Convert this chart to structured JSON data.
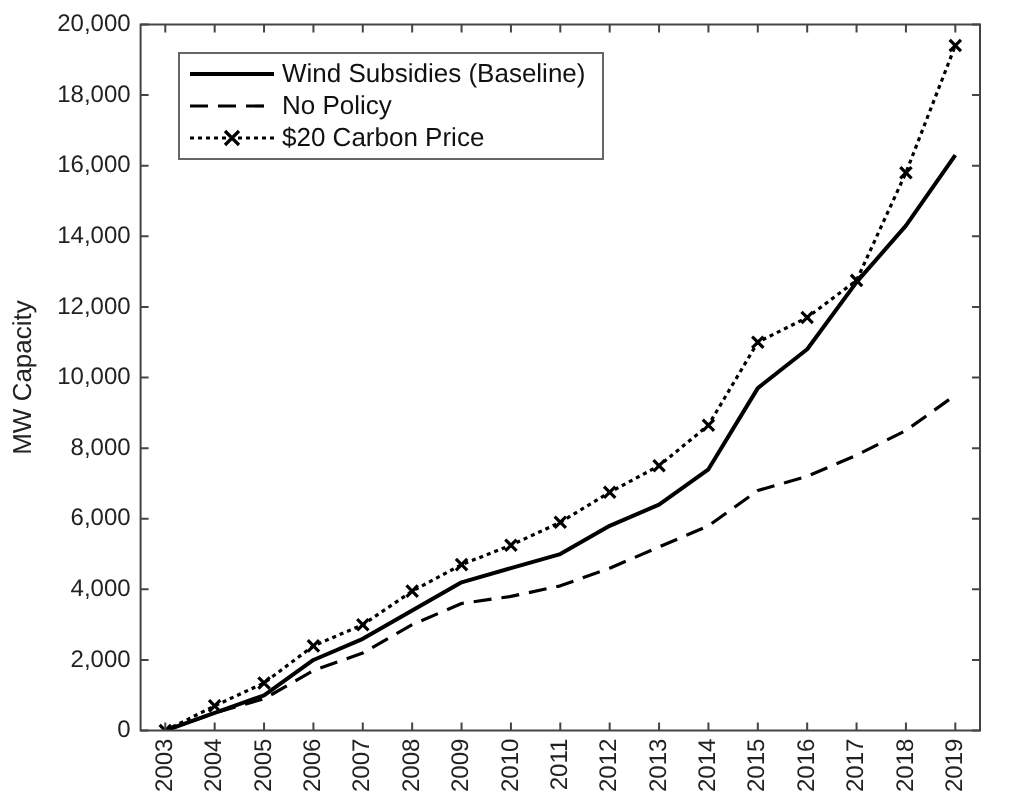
{
  "chart_data": {
    "type": "line",
    "ylabel": "MW Capacity",
    "categories": [
      "2003",
      "2004",
      "2005",
      "2006",
      "2007",
      "2008",
      "2009",
      "2010",
      "2011",
      "2012",
      "2013",
      "2014",
      "2015",
      "2016",
      "2017",
      "2018",
      "2019"
    ],
    "series": [
      {
        "name": "Wind Subsidies (Baseline)",
        "color": "#000000",
        "line_style": "solid",
        "marker": "none",
        "values": [
          0,
          500,
          1000,
          2000,
          2600,
          3400,
          4200,
          4600,
          5000,
          5800,
          6400,
          7400,
          9700,
          10800,
          12700,
          14300,
          16300
        ]
      },
      {
        "name": "No Policy",
        "color": "#000000",
        "line_style": "dashed",
        "marker": "none",
        "values": [
          0,
          500,
          900,
          1700,
          2200,
          3000,
          3600,
          3800,
          4100,
          4600,
          5200,
          5800,
          6800,
          7200,
          7800,
          8500,
          9500
        ]
      },
      {
        "name": "$20 Carbon Price",
        "color": "#000000",
        "line_style": "dotted",
        "marker": "cross",
        "values": [
          0,
          700,
          1350,
          2400,
          3000,
          3950,
          4700,
          5250,
          5900,
          6750,
          7500,
          8650,
          11000,
          11700,
          12750,
          15800,
          19400
        ]
      }
    ],
    "ylim": [
      0,
      20000
    ],
    "yticks": [
      0,
      {
        "value": 2000,
        "label": "2,000"
      },
      {
        "value": 4000,
        "label": "4,000"
      },
      {
        "value": 6000,
        "label": "6,000"
      },
      {
        "value": 8000,
        "label": "8,000"
      },
      {
        "value": 10000,
        "label": "10,000"
      },
      {
        "value": 12000,
        "label": "12,000"
      },
      {
        "value": 14000,
        "label": "14,000"
      },
      {
        "value": 16000,
        "label": "16,000"
      },
      {
        "value": 18000,
        "label": "18,000"
      },
      {
        "value": 20000,
        "label": "20,000"
      }
    ],
    "grid": false,
    "legend": "top left"
  }
}
